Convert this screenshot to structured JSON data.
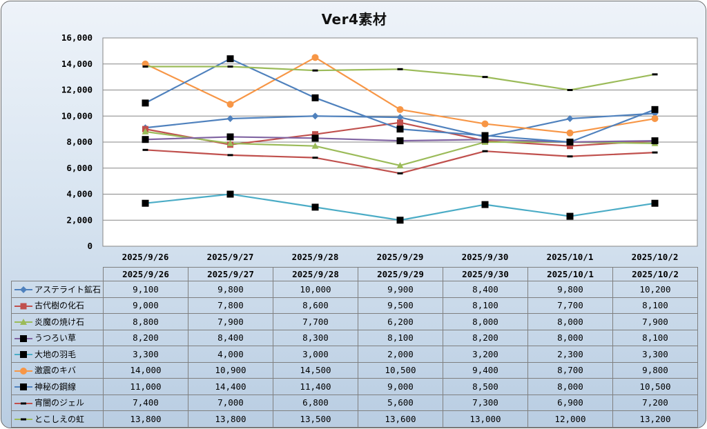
{
  "chart_data": {
    "type": "line",
    "title": "Ver4素材",
    "categories": [
      "2025/9/26",
      "2025/9/27",
      "2025/9/28",
      "2025/9/29",
      "2025/9/30",
      "2025/10/1",
      "2025/10/2"
    ],
    "ylim": [
      0,
      16000
    ],
    "yticks": [
      "0",
      "2,000",
      "4,000",
      "6,000",
      "8,000",
      "10,000",
      "12,000",
      "14,000",
      "16,000"
    ],
    "grid": true,
    "legend": "table-below",
    "series": [
      {
        "name": "アステライト鉱石",
        "color": "#4f81bd",
        "marker": "diamond",
        "values": [
          9100,
          9800,
          10000,
          9900,
          8400,
          9800,
          10200
        ],
        "labels": [
          "9,100",
          "9,800",
          "10,000",
          "9,900",
          "8,400",
          "9,800",
          "10,200"
        ]
      },
      {
        "name": "古代樹の化石",
        "color": "#c0504d",
        "marker": "square",
        "values": [
          9000,
          7800,
          8600,
          9500,
          8100,
          7700,
          8100
        ],
        "labels": [
          "9,000",
          "7,800",
          "8,600",
          "9,500",
          "8,100",
          "7,700",
          "8,100"
        ]
      },
      {
        "name": "炎魔の焼け石",
        "color": "#9bbb59",
        "marker": "triangle",
        "values": [
          8800,
          7900,
          7700,
          6200,
          8000,
          8000,
          7900
        ],
        "labels": [
          "8,800",
          "7,900",
          "7,700",
          "6,200",
          "8,000",
          "8,000",
          "7,900"
        ]
      },
      {
        "name": "うつろい草",
        "color": "#8064a2",
        "marker": "blacksquare",
        "values": [
          8200,
          8400,
          8300,
          8100,
          8200,
          8000,
          8100
        ],
        "labels": [
          "8,200",
          "8,400",
          "8,300",
          "8,100",
          "8,200",
          "8,000",
          "8,100"
        ]
      },
      {
        "name": "大地の羽毛",
        "color": "#4bacc6",
        "marker": "blacksquare",
        "values": [
          3300,
          4000,
          3000,
          2000,
          3200,
          2300,
          3300
        ],
        "labels": [
          "3,300",
          "4,000",
          "3,000",
          "2,000",
          "3,200",
          "2,300",
          "3,300"
        ]
      },
      {
        "name": "激震のキバ",
        "color": "#f79646",
        "marker": "circle",
        "values": [
          14000,
          10900,
          14500,
          10500,
          9400,
          8700,
          9800
        ],
        "labels": [
          "14,000",
          "10,900",
          "14,500",
          "10,500",
          "9,400",
          "8,700",
          "9,800"
        ]
      },
      {
        "name": "神秘の鋼線",
        "color": "#4f81bd",
        "marker": "blacksquare",
        "values": [
          11000,
          14400,
          11400,
          9000,
          8500,
          8000,
          10500
        ],
        "labels": [
          "11,000",
          "14,400",
          "11,400",
          "9,000",
          "8,500",
          "8,000",
          "10,500"
        ]
      },
      {
        "name": "宵闇のジェル",
        "color": "#c0504d",
        "marker": "dash",
        "values": [
          7400,
          7000,
          6800,
          5600,
          7300,
          6900,
          7200
        ],
        "labels": [
          "7,400",
          "7,000",
          "6,800",
          "5,600",
          "7,300",
          "6,900",
          "7,200"
        ]
      },
      {
        "name": "とこしえの虹",
        "color": "#9bbb59",
        "marker": "dash",
        "values": [
          13800,
          13800,
          13500,
          13600,
          13000,
          12000,
          13200
        ],
        "labels": [
          "13,800",
          "13,800",
          "13,500",
          "13,600",
          "13,000",
          "12,000",
          "13,200"
        ]
      }
    ]
  }
}
